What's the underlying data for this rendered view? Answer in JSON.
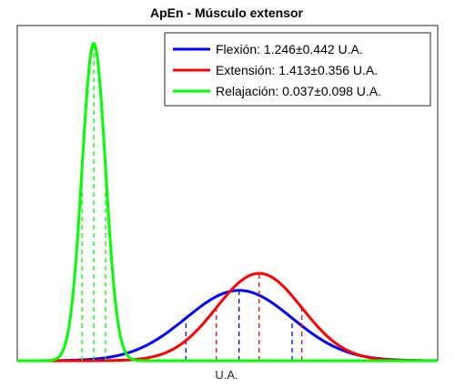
{
  "chart_data": {
    "type": "line",
    "title": "ApEn - Músculo extensor",
    "xlabel": "U.A.",
    "ylabel": "",
    "xlim": [
      -0.6,
      2.9
    ],
    "ylim": [
      0,
      4.3
    ],
    "grid": false,
    "legend_position": "top-right",
    "series": [
      {
        "name": "Flexión: 1.246±0.442 U.A.",
        "mean": 1.246,
        "sd": 0.442,
        "color": "#0000ff"
      },
      {
        "name": "Extensión: 1.413±0.356 U.A.",
        "mean": 1.413,
        "sd": 0.356,
        "color": "#ff0000"
      },
      {
        "name": "Relajación: 0.037±0.098 U.A.",
        "mean": 0.037,
        "sd": 0.098,
        "color": "#00ff00"
      }
    ],
    "dashed_markers": "mean and ±1 SD for each series"
  }
}
